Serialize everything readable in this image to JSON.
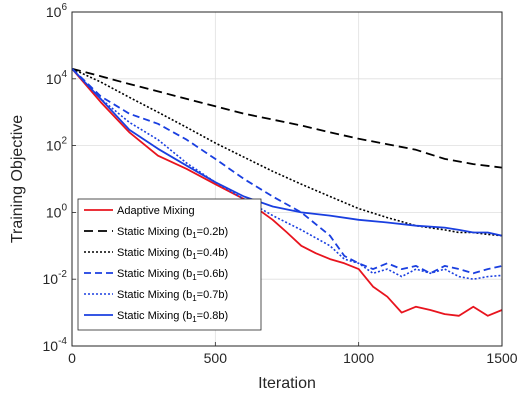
{
  "chart_data": {
    "type": "line",
    "xlabel": "Iteration",
    "ylabel": "Training Objective",
    "xlim": [
      0,
      1500
    ],
    "ylim": [
      0.0001,
      1000000
    ],
    "yscale": "log",
    "xticks": [
      0,
      500,
      1000,
      1500
    ],
    "xtick_labels": [
      "0",
      "500",
      "1000",
      "1500"
    ],
    "yticks": [
      0.0001,
      0.01,
      1,
      100,
      10000,
      1000000
    ],
    "ytick_labels": [
      {
        "base": "10",
        "exp": "-4"
      },
      {
        "base": "10",
        "exp": "-2"
      },
      {
        "base": "10",
        "exp": "0"
      },
      {
        "base": "10",
        "exp": "2"
      },
      {
        "base": "10",
        "exp": "4"
      },
      {
        "base": "10",
        "exp": "6"
      }
    ],
    "grid": true,
    "legend_position": "lower-left",
    "series": [
      {
        "name": "Adaptive Mixing",
        "legend": {
          "main": "Adaptive Mixing",
          "sub": "",
          "tail": ""
        },
        "color": "#e8141e",
        "dash": "solid",
        "width": 1.8,
        "x": [
          0,
          100,
          200,
          300,
          400,
          500,
          600,
          700,
          750,
          800,
          850,
          900,
          950,
          1000,
          1050,
          1100,
          1150,
          1200,
          1250,
          1300,
          1350,
          1400,
          1450,
          1500
        ],
        "y": [
          20000,
          2000,
          250,
          50,
          20,
          7,
          2.5,
          0.6,
          0.25,
          0.1,
          0.06,
          0.04,
          0.03,
          0.02,
          0.006,
          0.003,
          0.001,
          0.0015,
          0.0012,
          0.0009,
          0.0008,
          0.0015,
          0.0008,
          0.0012
        ]
      },
      {
        "name": "Static Mixing (b1=0.2b)",
        "legend": {
          "main": "Static Mixing (b",
          "sub": "1",
          "tail": "=0.2b)"
        },
        "color": "#000000",
        "dash": "9,5",
        "width": 1.8,
        "x": [
          0,
          100,
          200,
          300,
          400,
          500,
          600,
          700,
          800,
          900,
          1000,
          1100,
          1200,
          1300,
          1400,
          1500
        ],
        "y": [
          20000,
          12000,
          7000,
          4200,
          2500,
          1500,
          900,
          600,
          400,
          250,
          160,
          110,
          75,
          40,
          28,
          22
        ]
      },
      {
        "name": "Static Mixing (b1=0.4b)",
        "legend": {
          "main": "Static Mixing (b",
          "sub": "1",
          "tail": "=0.4b)"
        },
        "color": "#000000",
        "dash": "2,2",
        "width": 1.6,
        "x": [
          0,
          100,
          200,
          300,
          400,
          500,
          600,
          700,
          800,
          900,
          1000,
          1100,
          1200,
          1300,
          1350,
          1400,
          1450,
          1500
        ],
        "y": [
          20000,
          8000,
          2800,
          1000,
          350,
          120,
          45,
          17,
          7,
          3,
          1.3,
          0.7,
          0.4,
          0.3,
          0.25,
          0.25,
          0.22,
          0.2
        ]
      },
      {
        "name": "Static Mixing (b1=0.6b)",
        "legend": {
          "main": "Static Mixing (b",
          "sub": "1",
          "tail": "=0.6b)"
        },
        "color": "#1a3fe0",
        "dash": "7,4",
        "width": 1.8,
        "x": [
          0,
          100,
          200,
          300,
          400,
          500,
          600,
          700,
          800,
          900,
          950,
          1000,
          1050,
          1100,
          1150,
          1200,
          1250,
          1300,
          1350,
          1400,
          1450,
          1500
        ],
        "y": [
          20000,
          3000,
          900,
          450,
          150,
          40,
          10,
          3,
          1,
          0.2,
          0.05,
          0.03,
          0.02,
          0.03,
          0.02,
          0.025,
          0.015,
          0.025,
          0.02,
          0.015,
          0.02,
          0.025
        ]
      },
      {
        "name": "Static Mixing (b1=0.7b)",
        "legend": {
          "main": "Static Mixing (b",
          "sub": "1",
          "tail": "=0.7b)"
        },
        "color": "#1a3fe0",
        "dash": "2,2",
        "width": 1.6,
        "x": [
          0,
          100,
          200,
          300,
          400,
          500,
          600,
          700,
          800,
          900,
          950,
          1000,
          1050,
          1100,
          1150,
          1200,
          1250,
          1300,
          1350,
          1400,
          1450,
          1500
        ],
        "y": [
          20000,
          2500,
          500,
          150,
          30,
          8,
          2.5,
          0.8,
          0.3,
          0.1,
          0.04,
          0.03,
          0.015,
          0.02,
          0.012,
          0.02,
          0.015,
          0.02,
          0.012,
          0.01,
          0.012,
          0.013
        ]
      },
      {
        "name": "Static Mixing (b1=0.8b)",
        "legend": {
          "main": "Static Mixing (b",
          "sub": "1",
          "tail": "=0.8b)"
        },
        "color": "#1a3fe0",
        "dash": "solid",
        "width": 1.8,
        "x": [
          0,
          100,
          200,
          300,
          400,
          500,
          600,
          700,
          800,
          900,
          1000,
          1100,
          1200,
          1300,
          1350,
          1400,
          1450,
          1500
        ],
        "y": [
          20000,
          2500,
          300,
          80,
          25,
          8,
          3,
          1.5,
          1,
          0.8,
          0.6,
          0.5,
          0.4,
          0.35,
          0.3,
          0.25,
          0.25,
          0.2
        ]
      }
    ]
  }
}
